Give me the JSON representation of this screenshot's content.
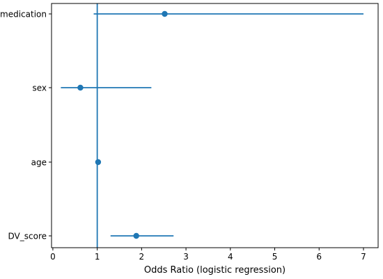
{
  "colors": {
    "series": "#1f77b4",
    "axis": "#000000",
    "background": "#ffffff"
  },
  "chart_data": {
    "type": "scatter",
    "subtype": "forest-plot",
    "title": "",
    "xlabel": "Odds Ratio (logistic regression)",
    "ylabel": "",
    "xlim": [
      -0.03,
      7.33
    ],
    "xticks": [
      0,
      1,
      2,
      3,
      4,
      5,
      6,
      7
    ],
    "reference_line_x": 1,
    "grid": false,
    "legend": "none",
    "categories": [
      "medication",
      "sex",
      "age",
      "DV_score"
    ],
    "estimates": [
      2.52,
      0.62,
      1.02,
      1.88
    ],
    "ci_lower": [
      0.92,
      0.18,
      1.0,
      1.3
    ],
    "ci_upper": [
      7.0,
      2.22,
      1.04,
      2.72
    ]
  }
}
